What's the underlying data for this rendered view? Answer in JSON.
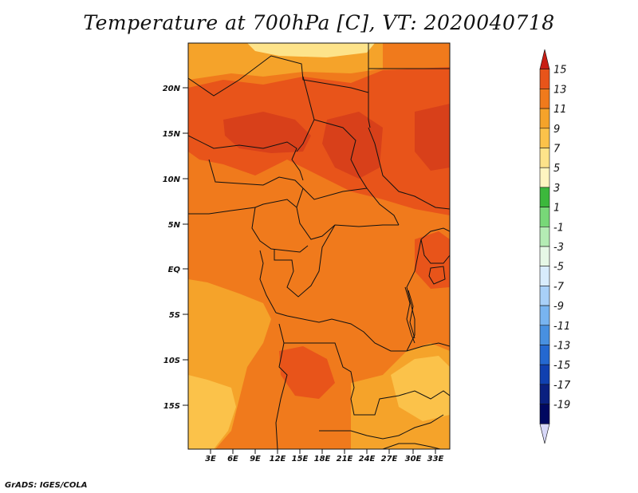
{
  "title": "Temperature at 700hPa [C], VT: 2020040718",
  "credit": "GrADS: IGES/COLA",
  "map": {
    "lat_labels": [
      "20N",
      "15N",
      "10N",
      "5N",
      "EQ",
      "5S",
      "10S",
      "15S"
    ],
    "lon_labels": [
      "3E",
      "6E",
      "9E",
      "12E",
      "15E",
      "18E",
      "21E",
      "24E",
      "27E",
      "30E",
      "33E"
    ],
    "colors": {
      "base": "#f07a1c",
      "warm": "#e8541a",
      "hot": "#d8401a",
      "mild": "#f5a32a",
      "cool": "#fbc24a",
      "pale": "#fde38a",
      "border": "#111111"
    }
  },
  "colorbar": {
    "labels": [
      "15",
      "13",
      "11",
      "9",
      "7",
      "5",
      "3",
      "1",
      "-1",
      "-3",
      "-5",
      "-7",
      "-9",
      "-11",
      "-13",
      "-15",
      "-17",
      "-19"
    ],
    "colors": [
      "#c81e14",
      "#e8541a",
      "#f07a1c",
      "#f5a32a",
      "#fbc24a",
      "#fde38a",
      "#fff5c0",
      "#3cb83c",
      "#78d878",
      "#b4ecb4",
      "#e6f8e6",
      "#d8ecfc",
      "#a8d0f8",
      "#78b4f0",
      "#4890e0",
      "#2468d0",
      "#1040b0",
      "#0a2080",
      "#000860",
      "#d8d8f8"
    ]
  }
}
